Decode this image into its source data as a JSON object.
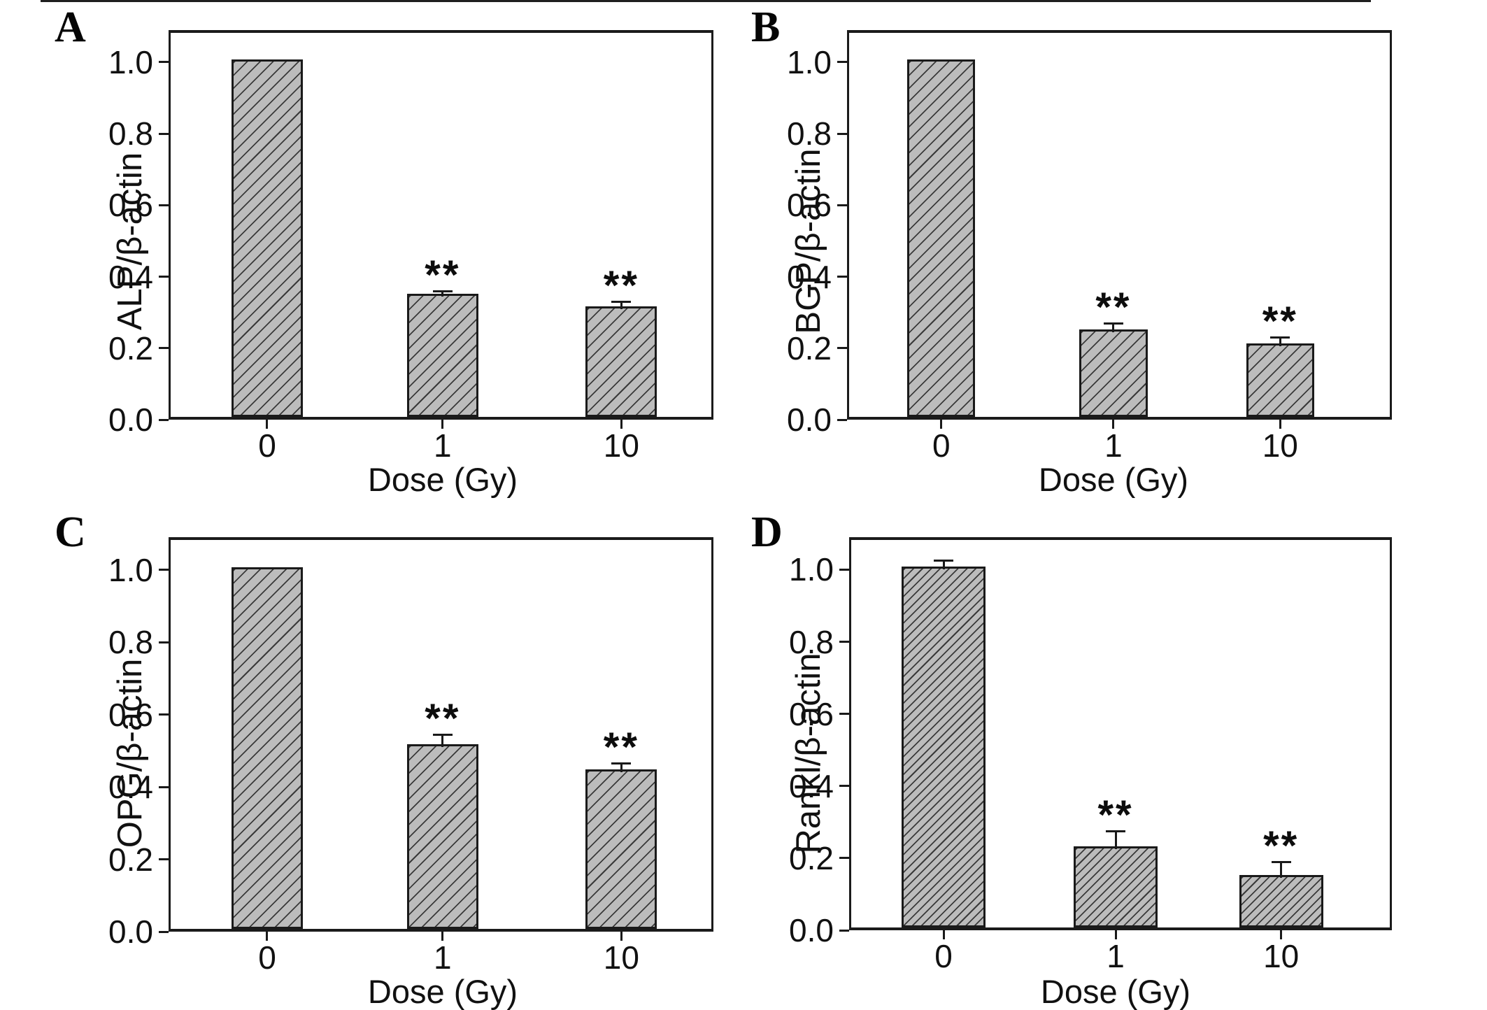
{
  "figure": {
    "background": "#ffffff",
    "xlabel": "Dose (Gy)",
    "y_tick_labels": [
      "0.0",
      "0.2",
      "0.4",
      "0.6",
      "0.8",
      "1.0"
    ],
    "y_tick_values": [
      0,
      0.2,
      0.4,
      0.6,
      0.8,
      1.0
    ],
    "significance_marker": "**"
  },
  "chart_data": [
    {
      "type": "bar",
      "panel": "A",
      "title": "",
      "ylabel": "ALP/β-actin",
      "xlabel": "Dose (Gy)",
      "categories": [
        "0",
        "1",
        "10"
      ],
      "values": [
        1.0,
        0.345,
        0.31
      ],
      "errors": [
        0,
        0.015,
        0.02
      ],
      "significant": [
        false,
        true,
        true
      ],
      "ylim": [
        0,
        1.09
      ],
      "grid": false
    },
    {
      "type": "bar",
      "panel": "B",
      "title": "",
      "ylabel": "BGP/β-actin",
      "xlabel": "Dose (Gy)",
      "categories": [
        "0",
        "1",
        "10"
      ],
      "values": [
        1.0,
        0.245,
        0.205
      ],
      "errors": [
        0,
        0.025,
        0.025
      ],
      "significant": [
        false,
        true,
        true
      ],
      "ylim": [
        0,
        1.09
      ],
      "grid": false
    },
    {
      "type": "bar",
      "panel": "C",
      "title": "",
      "ylabel": "OPG/β-actin",
      "xlabel": "Dose (Gy)",
      "categories": [
        "0",
        "1",
        "10"
      ],
      "values": [
        1.0,
        0.51,
        0.44
      ],
      "errors": [
        0,
        0.035,
        0.025
      ],
      "significant": [
        false,
        true,
        true
      ],
      "ylim": [
        0,
        1.09
      ],
      "grid": false
    },
    {
      "type": "bar",
      "panel": "D",
      "title": "",
      "ylabel": "Rankl/β-actin",
      "xlabel": "Dose (Gy)",
      "categories": [
        "0",
        "1",
        "10"
      ],
      "values": [
        1.0,
        0.225,
        0.145
      ],
      "errors": [
        0.025,
        0.05,
        0.045
      ],
      "significant": [
        false,
        true,
        true
      ],
      "ylim": [
        0,
        1.09
      ],
      "grid": false
    }
  ],
  "style": {
    "bar_fill": "#bcbcbc",
    "hatch_color": "#3a3a3a",
    "axis_color": "#1a1a1a",
    "text_color": "#111111",
    "hatch_direction": "/"
  }
}
